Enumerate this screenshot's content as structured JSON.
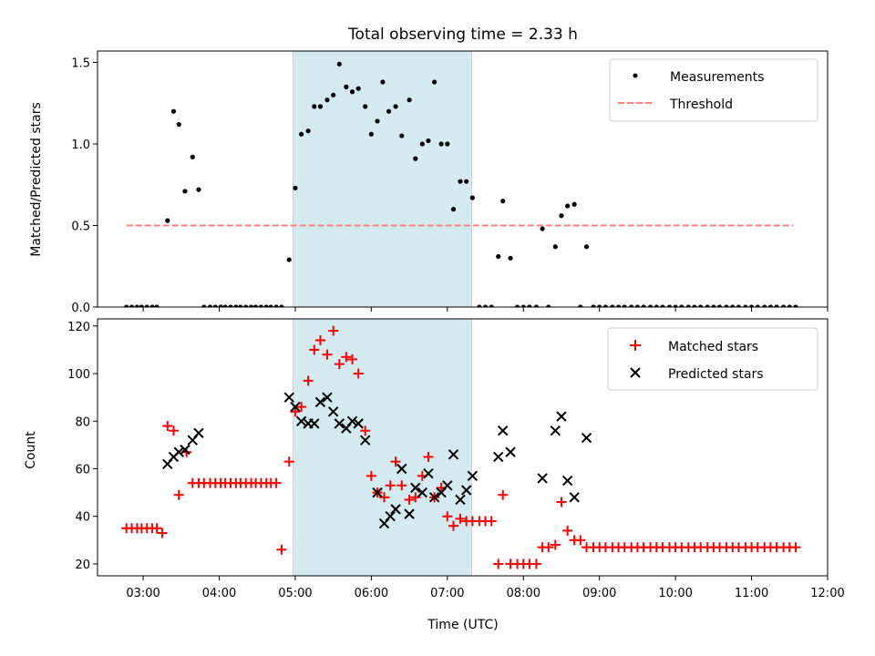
{
  "chart_data": {
    "title": "Total observing time = 2.33 h",
    "xlabel": "Time (UTC)",
    "x_unit": "hours UTC",
    "xlim": [
      2.4,
      12.0
    ],
    "x_ticks": [
      3,
      4,
      5,
      6,
      7,
      8,
      9,
      10,
      11,
      12
    ],
    "x_tick_labels": [
      "03:00",
      "04:00",
      "05:00",
      "06:00",
      "07:00",
      "08:00",
      "09:00",
      "10:00",
      "11:00",
      "12:00"
    ],
    "shaded_interval": {
      "x": [
        4.97,
        7.32
      ],
      "color": "#d4eaf1"
    },
    "panels": [
      {
        "type": "scatter",
        "ylabel": "Matched/Predicted stars",
        "ylim": [
          0,
          1.57
        ],
        "y_ticks": [
          0.0,
          0.5,
          1.0,
          1.5
        ],
        "y_tick_labels": [
          "0.0",
          "0.5",
          "1.0",
          "1.5"
        ],
        "legend_position": "top-right",
        "series": [
          {
            "name": "Measurements",
            "marker": "dot",
            "color": "#000000",
            "x": [
              2.78,
              2.85,
              2.92,
              2.98,
              3.05,
              3.12,
              3.18,
              3.32,
              3.4,
              3.47,
              3.55,
              3.65,
              3.73,
              3.8,
              3.88,
              3.95,
              4.02,
              4.08,
              4.15,
              4.22,
              4.28,
              4.35,
              4.42,
              4.48,
              4.55,
              4.62,
              4.68,
              4.75,
              4.82,
              4.92,
              5.0,
              5.08,
              5.17,
              5.25,
              5.33,
              5.42,
              5.5,
              5.58,
              5.67,
              5.75,
              5.83,
              5.92,
              6.0,
              6.08,
              6.15,
              6.23,
              6.32,
              6.4,
              6.5,
              6.58,
              6.67,
              6.75,
              6.83,
              6.92,
              7.0,
              7.08,
              7.17,
              7.25,
              7.33,
              7.42,
              7.5,
              7.58,
              7.67,
              7.73,
              7.83,
              7.92,
              8.0,
              8.08,
              8.17,
              8.25,
              8.33,
              8.42,
              8.5,
              8.58,
              8.67,
              8.75,
              8.83,
              8.92,
              9.0,
              9.08,
              9.17,
              9.25,
              9.33,
              9.42,
              9.5,
              9.58,
              9.67,
              9.75,
              9.83,
              9.92,
              10.0,
              10.08,
              10.17,
              10.25,
              10.33,
              10.42,
              10.5,
              10.58,
              10.67,
              10.75,
              10.83,
              10.92,
              11.0,
              11.08,
              11.17,
              11.25,
              11.33,
              11.42,
              11.5,
              11.58
            ],
            "y": [
              0,
              0,
              0,
              0,
              0,
              0,
              0,
              0.53,
              1.2,
              1.12,
              0.71,
              0.92,
              0.72,
              0,
              0,
              0,
              0,
              0,
              0,
              0,
              0,
              0,
              0,
              0,
              0,
              0,
              0,
              0,
              0,
              0.29,
              0.73,
              1.06,
              1.08,
              1.23,
              1.23,
              1.27,
              1.3,
              1.49,
              1.35,
              1.32,
              1.34,
              1.23,
              1.06,
              1.14,
              1.38,
              1.2,
              1.23,
              1.05,
              1.27,
              0.91,
              1.0,
              1.02,
              1.38,
              1.0,
              1.0,
              0.6,
              0.77,
              0.77,
              0.67,
              0,
              0,
              0,
              0.31,
              0.65,
              0.3,
              0,
              0,
              0,
              0,
              0.48,
              0,
              0.37,
              0.56,
              0.62,
              0.63,
              0,
              0.37,
              0,
              0,
              0,
              0,
              0,
              0,
              0,
              0,
              0,
              0,
              0,
              0,
              0,
              0,
              0,
              0,
              0,
              0,
              0,
              0,
              0,
              0,
              0,
              0,
              0,
              0,
              0,
              0,
              0,
              0,
              0,
              0,
              0
            ]
          },
          {
            "name": "Threshold",
            "type": "line",
            "style": "dashed",
            "color": "#ff7f7f",
            "x": [
              2.78,
              11.55
            ],
            "y": [
              0.5,
              0.5
            ]
          }
        ]
      },
      {
        "type": "scatter",
        "ylabel": "Count",
        "ylim": [
          15,
          123
        ],
        "y_ticks": [
          20,
          40,
          60,
          80,
          100,
          120
        ],
        "y_tick_labels": [
          "20",
          "40",
          "60",
          "80",
          "100",
          "120"
        ],
        "legend_position": "top-right",
        "series": [
          {
            "name": "Matched stars",
            "marker": "plus",
            "color": "#ff0000",
            "x": [
              2.78,
              2.85,
              2.92,
              2.98,
              3.05,
              3.12,
              3.18,
              3.25,
              3.32,
              3.4,
              3.47,
              3.57,
              3.65,
              3.73,
              3.8,
              3.88,
              3.95,
              4.02,
              4.08,
              4.15,
              4.22,
              4.28,
              4.35,
              4.42,
              4.48,
              4.55,
              4.62,
              4.68,
              4.75,
              4.82,
              4.92,
              5.0,
              5.08,
              5.17,
              5.25,
              5.33,
              5.42,
              5.5,
              5.58,
              5.67,
              5.75,
              5.83,
              5.92,
              6.0,
              6.08,
              6.17,
              6.25,
              6.32,
              6.4,
              6.5,
              6.58,
              6.67,
              6.75,
              6.83,
              6.92,
              7.0,
              7.08,
              7.17,
              7.25,
              7.33,
              7.42,
              7.5,
              7.58,
              7.67,
              7.73,
              7.83,
              7.92,
              8.0,
              8.08,
              8.17,
              8.25,
              8.33,
              8.42,
              8.5,
              8.58,
              8.67,
              8.75,
              8.83,
              8.92,
              9.0,
              9.08,
              9.17,
              9.25,
              9.33,
              9.42,
              9.5,
              9.58,
              9.67,
              9.75,
              9.83,
              9.92,
              10.0,
              10.08,
              10.17,
              10.25,
              10.33,
              10.42,
              10.5,
              10.58,
              10.67,
              10.75,
              10.83,
              10.92,
              11.0,
              11.08,
              11.17,
              11.25,
              11.33,
              11.42,
              11.5,
              11.58
            ],
            "y": [
              35,
              35,
              35,
              35,
              35,
              35,
              35,
              33,
              78,
              76,
              49,
              67,
              54,
              54,
              54,
              54,
              54,
              54,
              54,
              54,
              54,
              54,
              54,
              54,
              54,
              54,
              54,
              54,
              54,
              26,
              63,
              84,
              86,
              97,
              110,
              114,
              108,
              118,
              104,
              107,
              106,
              100,
              76,
              57,
              50,
              48,
              53,
              63,
              53,
              47,
              48,
              57,
              65,
              48,
              52,
              40,
              36,
              39,
              38,
              38,
              38,
              38,
              38,
              20,
              49,
              20,
              20,
              20,
              20,
              20,
              27,
              27,
              28,
              46,
              34,
              30,
              30,
              27,
              27,
              27,
              27,
              27,
              27,
              27,
              27,
              27,
              27,
              27,
              27,
              27,
              27,
              27,
              27,
              27,
              27,
              27,
              27,
              27,
              27,
              27,
              27,
              27,
              27,
              27,
              27,
              27,
              27,
              27,
              27,
              27,
              27
            ]
          },
          {
            "name": "Predicted stars",
            "marker": "x",
            "color": "#000000",
            "x": [
              3.32,
              3.4,
              3.47,
              3.55,
              3.65,
              3.73,
              4.92,
              5.0,
              5.08,
              5.17,
              5.25,
              5.33,
              5.42,
              5.5,
              5.58,
              5.67,
              5.75,
              5.83,
              5.92,
              6.08,
              6.17,
              6.25,
              6.32,
              6.4,
              6.5,
              6.58,
              6.67,
              6.75,
              6.83,
              6.92,
              7.0,
              7.08,
              7.17,
              7.25,
              7.33,
              7.67,
              7.73,
              7.83,
              8.25,
              8.42,
              8.5,
              8.58,
              8.67,
              8.83
            ],
            "y": [
              62,
              65,
              67,
              68,
              72,
              75,
              90,
              86,
              80,
              79,
              79,
              88,
              90,
              84,
              79,
              77,
              80,
              79,
              72,
              50,
              37,
              40,
              43,
              60,
              41,
              52,
              50,
              58,
              48,
              50,
              53,
              66,
              47,
              51,
              57,
              65,
              76,
              67,
              56,
              76,
              82,
              55,
              48,
              73
            ]
          }
        ]
      }
    ]
  }
}
